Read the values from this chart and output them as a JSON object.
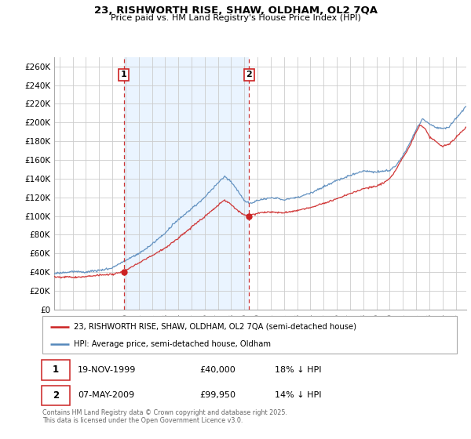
{
  "title": "23, RISHWORTH RISE, SHAW, OLDHAM, OL2 7QA",
  "subtitle": "Price paid vs. HM Land Registry's House Price Index (HPI)",
  "ylabel_ticks": [
    "£0",
    "£20K",
    "£40K",
    "£60K",
    "£80K",
    "£100K",
    "£120K",
    "£140K",
    "£160K",
    "£180K",
    "£200K",
    "£220K",
    "£240K",
    "£260K"
  ],
  "ytick_values": [
    0,
    20000,
    40000,
    60000,
    80000,
    100000,
    120000,
    140000,
    160000,
    180000,
    200000,
    220000,
    240000,
    260000
  ],
  "ylim": [
    0,
    270000
  ],
  "xlim_start": 1994.6,
  "xlim_end": 2025.8,
  "xticks": [
    1995,
    1996,
    1997,
    1998,
    1999,
    2000,
    2001,
    2002,
    2003,
    2004,
    2005,
    2006,
    2007,
    2008,
    2009,
    2010,
    2011,
    2012,
    2013,
    2014,
    2015,
    2016,
    2017,
    2018,
    2019,
    2020,
    2021,
    2022,
    2023,
    2024,
    2025
  ],
  "purchase1_x": 1999.88,
  "purchase1_y": 40000,
  "purchase2_x": 2009.35,
  "purchase2_y": 99950,
  "vline_color": "#cc3333",
  "shade_color": "#ddeeff",
  "red_line_color": "#cc2222",
  "blue_line_color": "#5588bb",
  "grid_color": "#cccccc",
  "background_color": "#ffffff",
  "legend_label_red": "23, RISHWORTH RISE, SHAW, OLDHAM, OL2 7QA (semi-detached house)",
  "legend_label_blue": "HPI: Average price, semi-detached house, Oldham",
  "footnote": "Contains HM Land Registry data © Crown copyright and database right 2025.\nThis data is licensed under the Open Government Licence v3.0.",
  "purchase_table": [
    [
      "1",
      "19-NOV-1999",
      "£40,000",
      "18% ↓ HPI"
    ],
    [
      "2",
      "07-MAY-2009",
      "£99,950",
      "14% ↓ HPI"
    ]
  ]
}
